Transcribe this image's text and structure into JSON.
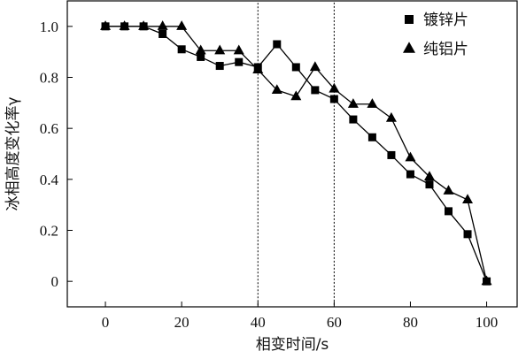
{
  "chart_data": {
    "type": "line",
    "xlabel": "相变时间/s",
    "ylabel": "冰相高度变化率γ",
    "xlim": [
      -10,
      108
    ],
    "ylim": [
      -0.1,
      1.1
    ],
    "xticks": [
      0,
      20,
      40,
      60,
      80,
      100
    ],
    "yticks": [
      0,
      0.2,
      0.4,
      0.6,
      0.8,
      1.0
    ],
    "xtick_labels": [
      "0",
      "20",
      "40",
      "60",
      "80",
      "100"
    ],
    "ytick_labels": [
      "0",
      "0.2",
      "0.4",
      "0.6",
      "0.8",
      "1.0"
    ],
    "grid": false,
    "legend_position": "top-right",
    "highlight_region": {
      "x": [
        40,
        60
      ],
      "style": "dotted"
    },
    "series": [
      {
        "name": "镀锌片",
        "marker": "square",
        "color": "#000000",
        "x": [
          0,
          5,
          10,
          15,
          20,
          25,
          30,
          35,
          40,
          45,
          50,
          55,
          60,
          65,
          70,
          75,
          80,
          85,
          90,
          95,
          100
        ],
        "y": [
          1.0,
          1.0,
          1.0,
          0.97,
          0.91,
          0.88,
          0.845,
          0.86,
          0.84,
          0.93,
          0.84,
          0.75,
          0.715,
          0.635,
          0.565,
          0.495,
          0.42,
          0.38,
          0.275,
          0.185,
          0.0
        ]
      },
      {
        "name": "纯铝片",
        "marker": "triangle",
        "color": "#000000",
        "x": [
          0,
          5,
          10,
          15,
          20,
          25,
          30,
          35,
          40,
          45,
          50,
          55,
          60,
          65,
          70,
          75,
          80,
          85,
          90,
          95,
          100
        ],
        "y": [
          1.0,
          1.0,
          1.0,
          1.0,
          1.0,
          0.905,
          0.905,
          0.905,
          0.83,
          0.75,
          0.725,
          0.84,
          0.755,
          0.695,
          0.695,
          0.64,
          0.485,
          0.41,
          0.355,
          0.32,
          0.0
        ]
      }
    ]
  }
}
